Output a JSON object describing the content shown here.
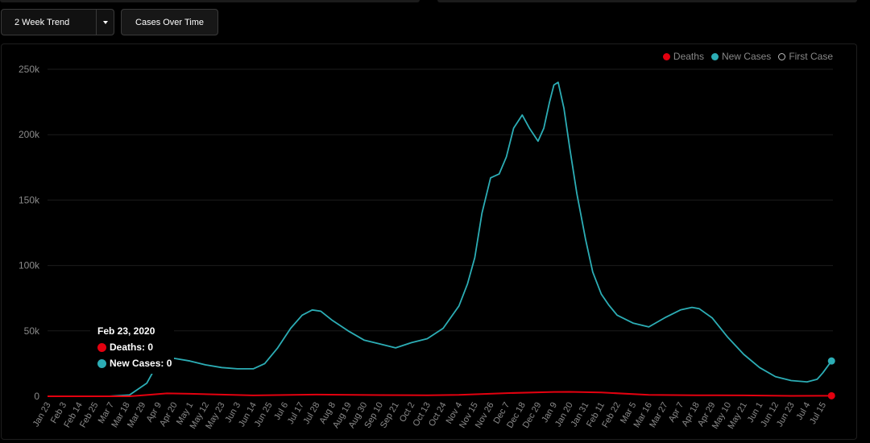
{
  "toolbar": {
    "trend_label": "2 Week Trend",
    "cases_label": "Cases Over Time"
  },
  "legend": {
    "deaths": "Deaths",
    "new_cases": "New Cases",
    "first_case": "First Case"
  },
  "tooltip": {
    "date": "Feb 23, 2020",
    "deaths": "Deaths: 0",
    "new_cases": "New Cases: 0"
  },
  "colors": {
    "deaths": "#e3000f",
    "new_cases": "#2cadb5",
    "grid": "#1c1c1c",
    "axis_text": "#8a8a8a"
  },
  "chart_data": {
    "type": "line",
    "yticks": [
      "0",
      "50k",
      "100k",
      "150k",
      "200k",
      "250k"
    ],
    "ytick_values": [
      0,
      50000,
      100000,
      150000,
      200000,
      250000
    ],
    "ylim": [
      0,
      250000
    ],
    "xlim": [
      "2020-01-23",
      "2021-07-22"
    ],
    "categories": [
      "Jan 23",
      "Feb 3",
      "Feb 14",
      "Feb 25",
      "Mar 7",
      "Mar 18",
      "Mar 29",
      "Apr 9",
      "Apr 20",
      "May 1",
      "May 12",
      "May 23",
      "Jun 3",
      "Jun 14",
      "Jun 25",
      "Jul 6",
      "Jul 17",
      "Jul 28",
      "Aug 8",
      "Aug 19",
      "Aug 30",
      "Sep 10",
      "Sep 21",
      "Oct 2",
      "Oct 13",
      "Oct 24",
      "Nov 4",
      "Nov 15",
      "Nov 26",
      "Dec 7",
      "Dec 18",
      "Dec 29",
      "Jan 9",
      "Jan 20",
      "Jan 31",
      "Feb 11",
      "Feb 22",
      "Mar 5",
      "Mar 16",
      "Mar 27",
      "Apr 7",
      "Apr 18",
      "Apr 29",
      "May 10",
      "May 21",
      "Jun 1",
      "Jun 12",
      "Jun 23",
      "Jul 4",
      "Jul 15"
    ],
    "grid": true,
    "legend_position": "top-right",
    "series": [
      {
        "name": "New Cases",
        "x": [
          "2020-01-23",
          "2020-03-05",
          "2020-03-20",
          "2020-04-01",
          "2020-04-10",
          "2020-04-20",
          "2020-05-01",
          "2020-05-12",
          "2020-05-23",
          "2020-06-03",
          "2020-06-14",
          "2020-06-22",
          "2020-07-01",
          "2020-07-10",
          "2020-07-18",
          "2020-07-25",
          "2020-07-31",
          "2020-08-08",
          "2020-08-19",
          "2020-08-30",
          "2020-09-10",
          "2020-09-21",
          "2020-10-02",
          "2020-10-13",
          "2020-10-24",
          "2020-11-04",
          "2020-11-10",
          "2020-11-15",
          "2020-11-20",
          "2020-11-26",
          "2020-12-02",
          "2020-12-07",
          "2020-12-12",
          "2020-12-18",
          "2020-12-23",
          "2020-12-29",
          "2021-01-02",
          "2021-01-06",
          "2021-01-09",
          "2021-01-12",
          "2021-01-16",
          "2021-01-20",
          "2021-01-25",
          "2021-01-31",
          "2021-02-05",
          "2021-02-11",
          "2021-02-16",
          "2021-02-22",
          "2021-03-05",
          "2021-03-16",
          "2021-03-27",
          "2021-04-07",
          "2021-04-15",
          "2021-04-20",
          "2021-04-29",
          "2021-05-10",
          "2021-05-21",
          "2021-06-01",
          "2021-06-12",
          "2021-06-23",
          "2021-07-04",
          "2021-07-11",
          "2021-07-15",
          "2021-07-21"
        ],
        "values": [
          0,
          0,
          1000,
          10000,
          28000,
          29000,
          27000,
          24000,
          22000,
          21000,
          21000,
          25000,
          37000,
          52000,
          62000,
          66000,
          65000,
          58000,
          50000,
          43000,
          40000,
          37000,
          41000,
          44000,
          52000,
          69000,
          86000,
          106000,
          140000,
          167000,
          170000,
          183000,
          205000,
          215000,
          205000,
          195000,
          205000,
          225000,
          238000,
          240000,
          220000,
          190000,
          155000,
          120000,
          95000,
          78000,
          70000,
          62000,
          56000,
          53000,
          60000,
          66000,
          68000,
          67000,
          60000,
          45000,
          32000,
          22000,
          15000,
          12000,
          11000,
          13000,
          18000,
          27000
        ]
      },
      {
        "name": "Deaths",
        "x": [
          "2020-01-23",
          "2020-03-20",
          "2020-04-01",
          "2020-04-15",
          "2020-05-01",
          "2020-06-14",
          "2020-07-28",
          "2020-09-10",
          "2020-10-13",
          "2020-11-04",
          "2020-12-07",
          "2021-01-09",
          "2021-01-20",
          "2021-02-11",
          "2021-03-16",
          "2021-04-18",
          "2021-05-21",
          "2021-06-23",
          "2021-07-21"
        ],
        "values": [
          0,
          0,
          1000,
          2200,
          1900,
          700,
          1300,
          900,
          800,
          1100,
          2400,
          3300,
          3400,
          2900,
          1100,
          800,
          700,
          300,
          400
        ]
      }
    ]
  }
}
